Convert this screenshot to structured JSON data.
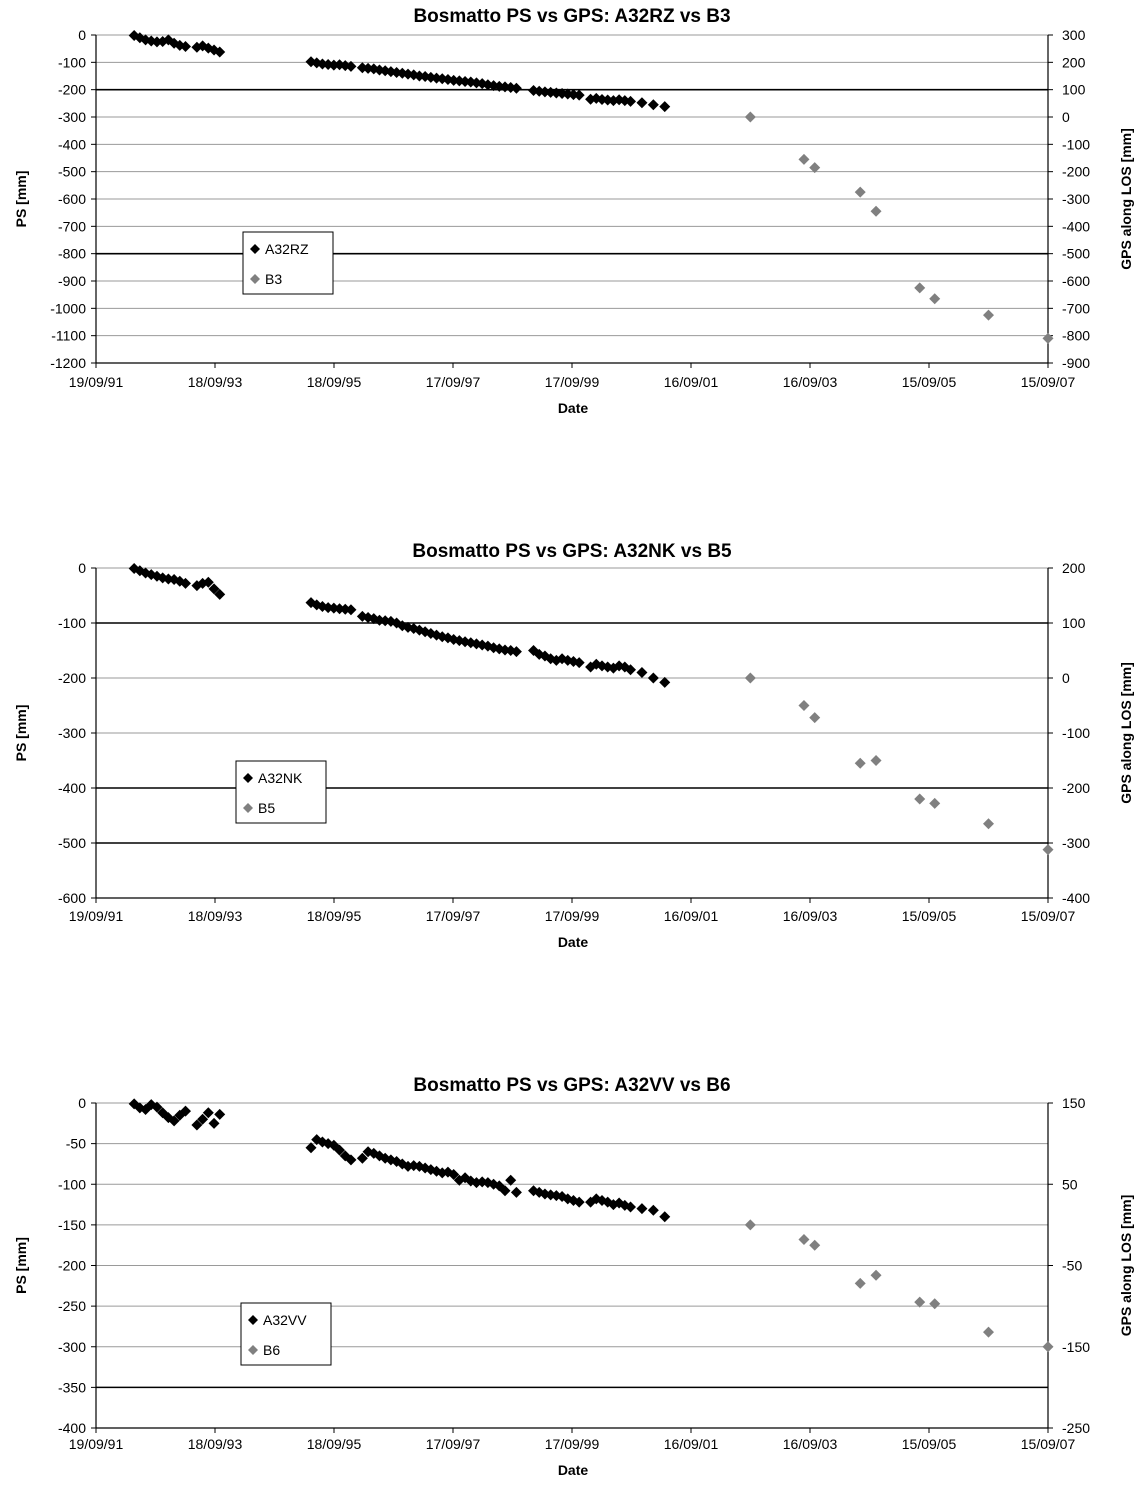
{
  "chart_data": [
    {
      "type": "scatter",
      "title": "Bosmatto PS vs GPS:  A32RZ vs B3",
      "xlabel": "Date",
      "ylabel": "PS [mm]",
      "y2label": "GPS along LOS [mm]",
      "x_ticks": [
        "19/09/91",
        "18/09/93",
        "18/09/95",
        "17/09/97",
        "17/09/99",
        "16/09/01",
        "16/09/03",
        "15/09/05",
        "15/09/07"
      ],
      "y_ticks": [
        "0",
        "-100",
        "-200",
        "-300",
        "-400",
        "-500",
        "-600",
        "-700",
        "-800",
        "-900",
        "-1000",
        "-1100",
        "-1200"
      ],
      "y2_ticks": [
        "300",
        "200",
        "100",
        "0",
        "-100",
        "-200",
        "-300",
        "-400",
        "-500",
        "-600",
        "-700",
        "-800",
        "-900"
      ],
      "ylim": [
        -1200,
        0
      ],
      "y2lim": [
        -900,
        300
      ],
      "major_gridlines": [
        -200,
        -800
      ],
      "legend_position": "left-middle",
      "series": [
        {
          "name": "A32RZ",
          "axis": "left",
          "color": "#000000",
          "x": [
            "1992-05-10",
            "1992-06-14",
            "1992-07-19",
            "1992-08-23",
            "1992-09-27",
            "1992-11-01",
            "1992-12-06",
            "1993-01-10",
            "1993-02-14",
            "1993-03-21",
            "1993-05-30",
            "1993-07-04",
            "1993-08-08",
            "1993-09-12",
            "1993-10-17",
            "1995-04-30",
            "1995-06-04",
            "1995-07-09",
            "1995-08-13",
            "1995-09-17",
            "1995-10-22",
            "1995-11-26",
            "1995-12-31",
            "1996-03-10",
            "1996-04-14",
            "1996-05-19",
            "1996-06-23",
            "1996-07-28",
            "1996-09-01",
            "1996-10-06",
            "1996-11-10",
            "1996-12-15",
            "1997-01-19",
            "1997-02-23",
            "1997-03-30",
            "1997-05-04",
            "1997-06-08",
            "1997-07-13",
            "1997-08-17",
            "1997-09-21",
            "1997-10-26",
            "1997-11-30",
            "1998-01-04",
            "1998-02-08",
            "1998-03-15",
            "1998-04-19",
            "1998-05-24",
            "1998-06-28",
            "1998-08-02",
            "1998-09-06",
            "1998-10-11",
            "1999-01-24",
            "1999-02-28",
            "1999-04-04",
            "1999-05-09",
            "1999-06-13",
            "1999-07-18",
            "1999-08-22",
            "1999-09-26",
            "1999-10-31",
            "2000-01-09",
            "2000-02-13",
            "2000-03-19",
            "2000-04-23",
            "2000-05-28",
            "2000-07-02",
            "2000-08-06",
            "2000-09-10",
            "2000-11-19",
            "2001-01-28",
            "2001-04-08"
          ],
          "y": [
            -2,
            -10,
            -18,
            -22,
            -25,
            -24,
            -18,
            -30,
            -38,
            -42,
            -45,
            -40,
            -48,
            -55,
            -62,
            -98,
            -102,
            -106,
            -108,
            -110,
            -109,
            -112,
            -115,
            -120,
            -122,
            -124,
            -128,
            -131,
            -134,
            -137,
            -140,
            -143,
            -146,
            -150,
            -152,
            -155,
            -158,
            -160,
            -163,
            -166,
            -168,
            -170,
            -172,
            -175,
            -178,
            -182,
            -185,
            -188,
            -190,
            -192,
            -195,
            -203,
            -206,
            -208,
            -210,
            -212,
            -214,
            -216,
            -218,
            -220,
            -235,
            -232,
            -236,
            -238,
            -240,
            -237,
            -240,
            -243,
            -248,
            -255,
            -262
          ]
        },
        {
          "name": "B3",
          "axis": "right",
          "color": "#808080",
          "x": [
            "2002-09-15",
            "2003-08-10",
            "2003-10-15",
            "2004-07-20",
            "2004-10-25",
            "2005-07-20",
            "2005-10-20",
            "2006-09-15",
            "2007-09-15"
          ],
          "y": [
            0,
            -155,
            -185,
            -275,
            -345,
            -625,
            -665,
            -725,
            -810
          ]
        }
      ]
    },
    {
      "type": "scatter",
      "title": "Bosmatto PS vs GPS:  A32NK vs B5",
      "xlabel": "Date",
      "ylabel": "PS [mm]",
      "y2label": "GPS along LOS [mm]",
      "x_ticks": [
        "19/09/91",
        "18/09/93",
        "18/09/95",
        "17/09/97",
        "17/09/99",
        "16/09/01",
        "16/09/03",
        "15/09/05",
        "15/09/07"
      ],
      "y_ticks": [
        "0",
        "-100",
        "-200",
        "-300",
        "-400",
        "-500",
        "-600"
      ],
      "y2_ticks": [
        "200",
        "100",
        "0",
        "-100",
        "-200",
        "-300",
        "-400"
      ],
      "ylim": [
        -600,
        0
      ],
      "y2lim": [
        -400,
        200
      ],
      "major_gridlines": [
        -100,
        -400,
        -500
      ],
      "legend_position": "left-middle",
      "series": [
        {
          "name": "A32NK",
          "axis": "left",
          "color": "#000000",
          "x": [
            "1992-05-10",
            "1992-06-14",
            "1992-07-19",
            "1992-08-23",
            "1992-09-27",
            "1992-11-01",
            "1992-12-06",
            "1993-01-10",
            "1993-02-14",
            "1993-03-21",
            "1993-05-30",
            "1993-07-04",
            "1993-08-08",
            "1993-09-12",
            "1993-10-17",
            "1995-04-30",
            "1995-06-04",
            "1995-07-09",
            "1995-08-13",
            "1995-09-17",
            "1995-10-22",
            "1995-11-26",
            "1995-12-31",
            "1996-03-10",
            "1996-04-14",
            "1996-05-19",
            "1996-06-23",
            "1996-07-28",
            "1996-09-01",
            "1996-10-06",
            "1996-11-10",
            "1996-12-15",
            "1997-01-19",
            "1997-02-23",
            "1997-03-30",
            "1997-05-04",
            "1997-06-08",
            "1997-07-13",
            "1997-08-17",
            "1997-09-21",
            "1997-10-26",
            "1997-11-30",
            "1998-01-04",
            "1998-02-08",
            "1998-03-15",
            "1998-04-19",
            "1998-05-24",
            "1998-06-28",
            "1998-08-02",
            "1998-09-06",
            "1998-10-11",
            "1999-01-24",
            "1999-02-28",
            "1999-04-04",
            "1999-05-09",
            "1999-06-13",
            "1999-07-18",
            "1999-08-22",
            "1999-09-26",
            "1999-10-31",
            "2000-01-09",
            "2000-02-13",
            "2000-03-19",
            "2000-04-23",
            "2000-05-28",
            "2000-07-02",
            "2000-08-06",
            "2000-09-10",
            "2000-11-19",
            "2001-01-28",
            "2001-04-08"
          ],
          "y": [
            -1,
            -5,
            -9,
            -12,
            -15,
            -18,
            -20,
            -21,
            -24,
            -28,
            -32,
            -28,
            -26,
            -38,
            -48,
            -63,
            -67,
            -70,
            -72,
            -73,
            -74,
            -75,
            -76,
            -88,
            -90,
            -92,
            -95,
            -96,
            -97,
            -100,
            -105,
            -108,
            -110,
            -113,
            -116,
            -119,
            -122,
            -125,
            -127,
            -130,
            -132,
            -134,
            -136,
            -138,
            -140,
            -142,
            -145,
            -147,
            -149,
            -150,
            -152,
            -150,
            -157,
            -160,
            -165,
            -168,
            -165,
            -168,
            -170,
            -172,
            -180,
            -175,
            -178,
            -180,
            -182,
            -178,
            -180,
            -185,
            -190,
            -200,
            -208
          ]
        },
        {
          "name": "B5",
          "axis": "right",
          "color": "#808080",
          "x": [
            "2002-09-15",
            "2003-08-10",
            "2003-10-15",
            "2004-07-20",
            "2004-10-25",
            "2005-07-20",
            "2005-10-20",
            "2006-09-15",
            "2007-09-15"
          ],
          "y": [
            0,
            -50,
            -72,
            -155,
            -150,
            -220,
            -228,
            -265,
            -312
          ]
        }
      ]
    },
    {
      "type": "scatter",
      "title": "Bosmatto PS vs GPS:  A32VV vs B6",
      "xlabel": "Date",
      "ylabel": "PS [mm]",
      "y2label": "GPS along LOS [mm]",
      "x_ticks": [
        "19/09/91",
        "18/09/93",
        "18/09/95",
        "17/09/97",
        "17/09/99",
        "16/09/01",
        "16/09/03",
        "15/09/05",
        "15/09/07"
      ],
      "y_ticks": [
        "0",
        "-50",
        "-100",
        "-150",
        "-200",
        "-250",
        "-300",
        "-350",
        "-400"
      ],
      "y2_ticks": [
        "150",
        "50",
        "-50",
        "-150",
        "-250"
      ],
      "ylim": [
        -400,
        0
      ],
      "y2lim": [
        -250,
        150
      ],
      "major_gridlines": [
        -350
      ],
      "legend_position": "left-middle",
      "series": [
        {
          "name": "A32VV",
          "axis": "left",
          "color": "#000000",
          "x": [
            "1992-05-10",
            "1992-06-14",
            "1992-07-19",
            "1992-08-23",
            "1992-09-27",
            "1992-11-01",
            "1992-12-06",
            "1993-01-10",
            "1993-02-14",
            "1993-03-21",
            "1993-05-30",
            "1993-07-04",
            "1993-08-08",
            "1993-09-12",
            "1993-10-17",
            "1995-04-30",
            "1995-06-04",
            "1995-07-09",
            "1995-08-13",
            "1995-09-17",
            "1995-10-22",
            "1995-11-26",
            "1995-12-31",
            "1996-03-10",
            "1996-04-14",
            "1996-05-19",
            "1996-06-23",
            "1996-07-28",
            "1996-09-01",
            "1996-10-06",
            "1996-11-10",
            "1996-12-15",
            "1997-01-19",
            "1997-02-23",
            "1997-03-30",
            "1997-05-04",
            "1997-06-08",
            "1997-07-13",
            "1997-08-17",
            "1997-09-21",
            "1997-10-26",
            "1997-11-30",
            "1998-01-04",
            "1998-02-08",
            "1998-03-15",
            "1998-04-19",
            "1998-05-24",
            "1998-06-28",
            "1998-08-02",
            "1998-09-06",
            "1998-10-11",
            "1999-01-24",
            "1999-02-28",
            "1999-04-04",
            "1999-05-09",
            "1999-06-13",
            "1999-07-18",
            "1999-08-22",
            "1999-09-26",
            "1999-10-31",
            "2000-01-09",
            "2000-02-13",
            "2000-03-19",
            "2000-04-23",
            "2000-05-28",
            "2000-07-02",
            "2000-08-06",
            "2000-09-10",
            "2000-11-19",
            "2001-01-28",
            "2001-04-08"
          ],
          "y": [
            -1,
            -6,
            -8,
            -2,
            -5,
            -12,
            -18,
            -22,
            -15,
            -10,
            -27,
            -20,
            -12,
            -25,
            -14,
            -55,
            -45,
            -48,
            -50,
            -52,
            -58,
            -65,
            -70,
            -68,
            -60,
            -62,
            -65,
            -68,
            -70,
            -72,
            -75,
            -78,
            -77,
            -78,
            -80,
            -82,
            -84,
            -86,
            -85,
            -88,
            -95,
            -92,
            -96,
            -98,
            -97,
            -98,
            -100,
            -102,
            -108,
            -95,
            -110,
            -108,
            -110,
            -112,
            -113,
            -114,
            -115,
            -118,
            -120,
            -122,
            -122,
            -118,
            -120,
            -122,
            -125,
            -123,
            -126,
            -128,
            -130,
            -132,
            -140
          ]
        },
        {
          "name": "B6",
          "axis": "right",
          "color": "#808080",
          "x": [
            "2002-09-15",
            "2003-08-10",
            "2003-10-15",
            "2004-07-20",
            "2004-10-25",
            "2005-07-20",
            "2005-10-20",
            "2006-09-15",
            "2007-09-15"
          ],
          "y": [
            0,
            -18,
            -25,
            -72,
            -62,
            -95,
            -97,
            -132,
            -150
          ]
        }
      ]
    }
  ]
}
